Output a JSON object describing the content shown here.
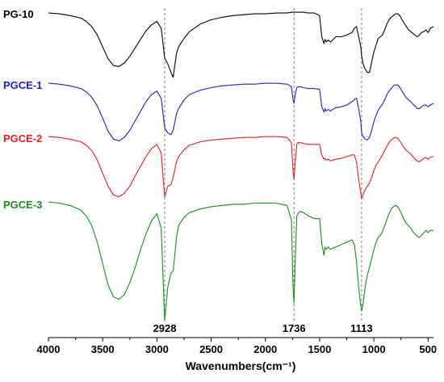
{
  "chart_data": {
    "type": "line",
    "xlabel": "Wavenumbers(cm⁻¹)",
    "xlim": [
      4000,
      450
    ],
    "xticks": [
      "4000",
      "3500",
      "3000",
      "2500",
      "2000",
      "1500",
      "1000",
      "500"
    ],
    "annotations": [
      {
        "x": 2928,
        "label": "2928"
      },
      {
        "x": 1736,
        "label": "1736"
      },
      {
        "x": 1113,
        "label": "1113"
      }
    ],
    "series": [
      {
        "name": "PG-10",
        "color": "#000000",
        "x": [
          4000,
          3900,
          3800,
          3700,
          3650,
          3600,
          3550,
          3500,
          3450,
          3400,
          3350,
          3300,
          3250,
          3200,
          3150,
          3100,
          3050,
          3000,
          2960,
          2928,
          2900,
          2870,
          2850,
          2820,
          2800,
          2750,
          2700,
          2600,
          2500,
          2400,
          2300,
          2200,
          2100,
          2000,
          1900,
          1800,
          1750,
          1700,
          1650,
          1600,
          1550,
          1500,
          1480,
          1460,
          1450,
          1440,
          1420,
          1400,
          1380,
          1350,
          1300,
          1250,
          1200,
          1180,
          1160,
          1140,
          1120,
          1113,
          1100,
          1080,
          1060,
          1040,
          1020,
          1000,
          980,
          960,
          940,
          920,
          900,
          880,
          860,
          840,
          820,
          800,
          780,
          760,
          740,
          720,
          700,
          680,
          660,
          640,
          620,
          600,
          580,
          560,
          540,
          520,
          500,
          480,
          450
        ],
        "y": [
          0.02,
          0.03,
          0.05,
          0.08,
          0.12,
          0.18,
          0.28,
          0.42,
          0.56,
          0.64,
          0.65,
          0.61,
          0.53,
          0.43,
          0.33,
          0.23,
          0.16,
          0.12,
          0.2,
          0.55,
          0.62,
          0.72,
          0.78,
          0.5,
          0.42,
          0.32,
          0.24,
          0.15,
          0.1,
          0.07,
          0.05,
          0.04,
          0.03,
          0.03,
          0.02,
          0.02,
          0.01,
          0.01,
          0.01,
          0.02,
          0.02,
          0.05,
          0.3,
          0.38,
          0.33,
          0.36,
          0.34,
          0.36,
          0.34,
          0.3,
          0.3,
          0.28,
          0.25,
          0.2,
          0.18,
          0.3,
          0.42,
          0.52,
          0.62,
          0.68,
          0.72,
          0.72,
          0.6,
          0.48,
          0.4,
          0.32,
          0.3,
          0.28,
          0.22,
          0.15,
          0.1,
          0.07,
          0.05,
          0.03,
          0.03,
          0.05,
          0.1,
          0.14,
          0.18,
          0.22,
          0.24,
          0.26,
          0.28,
          0.3,
          0.28,
          0.25,
          0.24,
          0.22,
          0.25,
          0.2,
          0.18
        ]
      },
      {
        "name": "PGCE-1",
        "color": "#1f1fc8",
        "x": [
          4000,
          3900,
          3800,
          3700,
          3650,
          3600,
          3550,
          3500,
          3450,
          3400,
          3350,
          3300,
          3250,
          3200,
          3150,
          3100,
          3050,
          3000,
          2960,
          2928,
          2900,
          2870,
          2850,
          2820,
          2800,
          2750,
          2700,
          2600,
          2500,
          2400,
          2300,
          2200,
          2100,
          2000,
          1900,
          1800,
          1760,
          1745,
          1736,
          1725,
          1710,
          1700,
          1680,
          1650,
          1600,
          1550,
          1500,
          1480,
          1460,
          1450,
          1440,
          1420,
          1400,
          1380,
          1350,
          1300,
          1250,
          1200,
          1180,
          1160,
          1140,
          1120,
          1113,
          1100,
          1080,
          1060,
          1040,
          1020,
          1000,
          980,
          960,
          940,
          920,
          900,
          880,
          860,
          840,
          820,
          800,
          780,
          760,
          740,
          720,
          700,
          680,
          660,
          640,
          620,
          600,
          580,
          560,
          540,
          520,
          500,
          480,
          450
        ],
        "y": [
          0.01,
          0.02,
          0.04,
          0.07,
          0.11,
          0.17,
          0.27,
          0.41,
          0.56,
          0.65,
          0.67,
          0.63,
          0.55,
          0.44,
          0.33,
          0.22,
          0.14,
          0.1,
          0.18,
          0.52,
          0.58,
          0.6,
          0.55,
          0.36,
          0.3,
          0.2,
          0.14,
          0.09,
          0.06,
          0.04,
          0.03,
          0.02,
          0.02,
          0.01,
          0.01,
          0.02,
          0.05,
          0.2,
          0.24,
          0.14,
          0.06,
          0.05,
          0.05,
          0.06,
          0.07,
          0.07,
          0.08,
          0.28,
          0.34,
          0.3,
          0.33,
          0.31,
          0.33,
          0.31,
          0.29,
          0.28,
          0.26,
          0.22,
          0.2,
          0.18,
          0.3,
          0.45,
          0.58,
          0.62,
          0.65,
          0.66,
          0.63,
          0.55,
          0.45,
          0.38,
          0.32,
          0.28,
          0.25,
          0.2,
          0.14,
          0.1,
          0.07,
          0.04,
          0.03,
          0.03,
          0.06,
          0.1,
          0.14,
          0.18,
          0.2,
          0.22,
          0.25,
          0.27,
          0.3,
          0.3,
          0.28,
          0.26,
          0.26,
          0.28,
          0.26,
          0.24
        ]
      },
      {
        "name": "PGCE-2",
        "color": "#e02020",
        "x": [
          4000,
          3900,
          3800,
          3700,
          3650,
          3600,
          3550,
          3500,
          3450,
          3400,
          3350,
          3300,
          3250,
          3200,
          3150,
          3100,
          3050,
          3000,
          2960,
          2928,
          2900,
          2870,
          2850,
          2820,
          2800,
          2750,
          2700,
          2600,
          2500,
          2400,
          2300,
          2200,
          2100,
          2000,
          1900,
          1800,
          1760,
          1745,
          1736,
          1725,
          1710,
          1700,
          1680,
          1650,
          1600,
          1550,
          1500,
          1480,
          1460,
          1450,
          1440,
          1420,
          1400,
          1380,
          1350,
          1300,
          1250,
          1200,
          1180,
          1160,
          1140,
          1120,
          1113,
          1100,
          1080,
          1060,
          1040,
          1020,
          1000,
          980,
          960,
          940,
          920,
          900,
          880,
          860,
          840,
          820,
          800,
          780,
          760,
          740,
          720,
          700,
          680,
          660,
          640,
          620,
          600,
          580,
          560,
          540,
          520,
          500,
          480,
          450
        ],
        "y": [
          0.01,
          0.02,
          0.04,
          0.07,
          0.11,
          0.17,
          0.28,
          0.43,
          0.58,
          0.68,
          0.7,
          0.66,
          0.58,
          0.46,
          0.35,
          0.24,
          0.15,
          0.1,
          0.2,
          0.7,
          0.58,
          0.56,
          0.48,
          0.3,
          0.24,
          0.16,
          0.11,
          0.07,
          0.05,
          0.04,
          0.03,
          0.02,
          0.02,
          0.01,
          0.01,
          0.02,
          0.08,
          0.4,
          0.5,
          0.3,
          0.1,
          0.08,
          0.08,
          0.09,
          0.1,
          0.1,
          0.1,
          0.22,
          0.27,
          0.26,
          0.28,
          0.27,
          0.29,
          0.28,
          0.27,
          0.26,
          0.24,
          0.22,
          0.22,
          0.3,
          0.5,
          0.66,
          0.72,
          0.68,
          0.62,
          0.58,
          0.54,
          0.48,
          0.4,
          0.34,
          0.3,
          0.26,
          0.22,
          0.17,
          0.12,
          0.08,
          0.05,
          0.03,
          0.02,
          0.03,
          0.06,
          0.1,
          0.14,
          0.17,
          0.19,
          0.21,
          0.24,
          0.27,
          0.29,
          0.3,
          0.28,
          0.26,
          0.25,
          0.27,
          0.25,
          0.24
        ]
      },
      {
        "name": "PGCE-3",
        "color": "#1a8c1a",
        "x": [
          4000,
          3900,
          3800,
          3700,
          3650,
          3600,
          3550,
          3500,
          3450,
          3400,
          3350,
          3300,
          3250,
          3200,
          3150,
          3100,
          3050,
          3000,
          2960,
          2928,
          2900,
          2870,
          2850,
          2820,
          2800,
          2750,
          2700,
          2600,
          2500,
          2400,
          2300,
          2200,
          2100,
          2000,
          1900,
          1800,
          1760,
          1745,
          1736,
          1725,
          1710,
          1700,
          1680,
          1650,
          1600,
          1550,
          1500,
          1480,
          1460,
          1450,
          1440,
          1420,
          1400,
          1380,
          1350,
          1300,
          1250,
          1200,
          1180,
          1160,
          1140,
          1120,
          1113,
          1100,
          1080,
          1060,
          1040,
          1020,
          1000,
          980,
          960,
          940,
          920,
          900,
          880,
          860,
          840,
          820,
          800,
          780,
          760,
          740,
          720,
          700,
          680,
          660,
          640,
          620,
          600,
          580,
          560,
          540,
          520,
          500,
          480,
          450
        ],
        "y": [
          0.0,
          0.01,
          0.03,
          0.07,
          0.12,
          0.2,
          0.34,
          0.52,
          0.7,
          0.8,
          0.82,
          0.78,
          0.68,
          0.55,
          0.4,
          0.27,
          0.16,
          0.1,
          0.22,
          1.0,
          0.72,
          0.6,
          0.58,
          0.3,
          0.2,
          0.13,
          0.09,
          0.06,
          0.04,
          0.03,
          0.02,
          0.02,
          0.01,
          0.01,
          0.01,
          0.03,
          0.15,
          0.72,
          0.85,
          0.5,
          0.12,
          0.1,
          0.08,
          0.09,
          0.12,
          0.14,
          0.14,
          0.35,
          0.45,
          0.38,
          0.4,
          0.38,
          0.4,
          0.39,
          0.38,
          0.36,
          0.34,
          0.32,
          0.36,
          0.5,
          0.72,
          0.88,
          0.92,
          0.86,
          0.72,
          0.62,
          0.55,
          0.48,
          0.4,
          0.34,
          0.3,
          0.28,
          0.25,
          0.2,
          0.15,
          0.1,
          0.06,
          0.04,
          0.03,
          0.04,
          0.07,
          0.11,
          0.15,
          0.18,
          0.2,
          0.22,
          0.25,
          0.27,
          0.29,
          0.3,
          0.28,
          0.26,
          0.24,
          0.26,
          0.24,
          0.24
        ]
      }
    ]
  }
}
